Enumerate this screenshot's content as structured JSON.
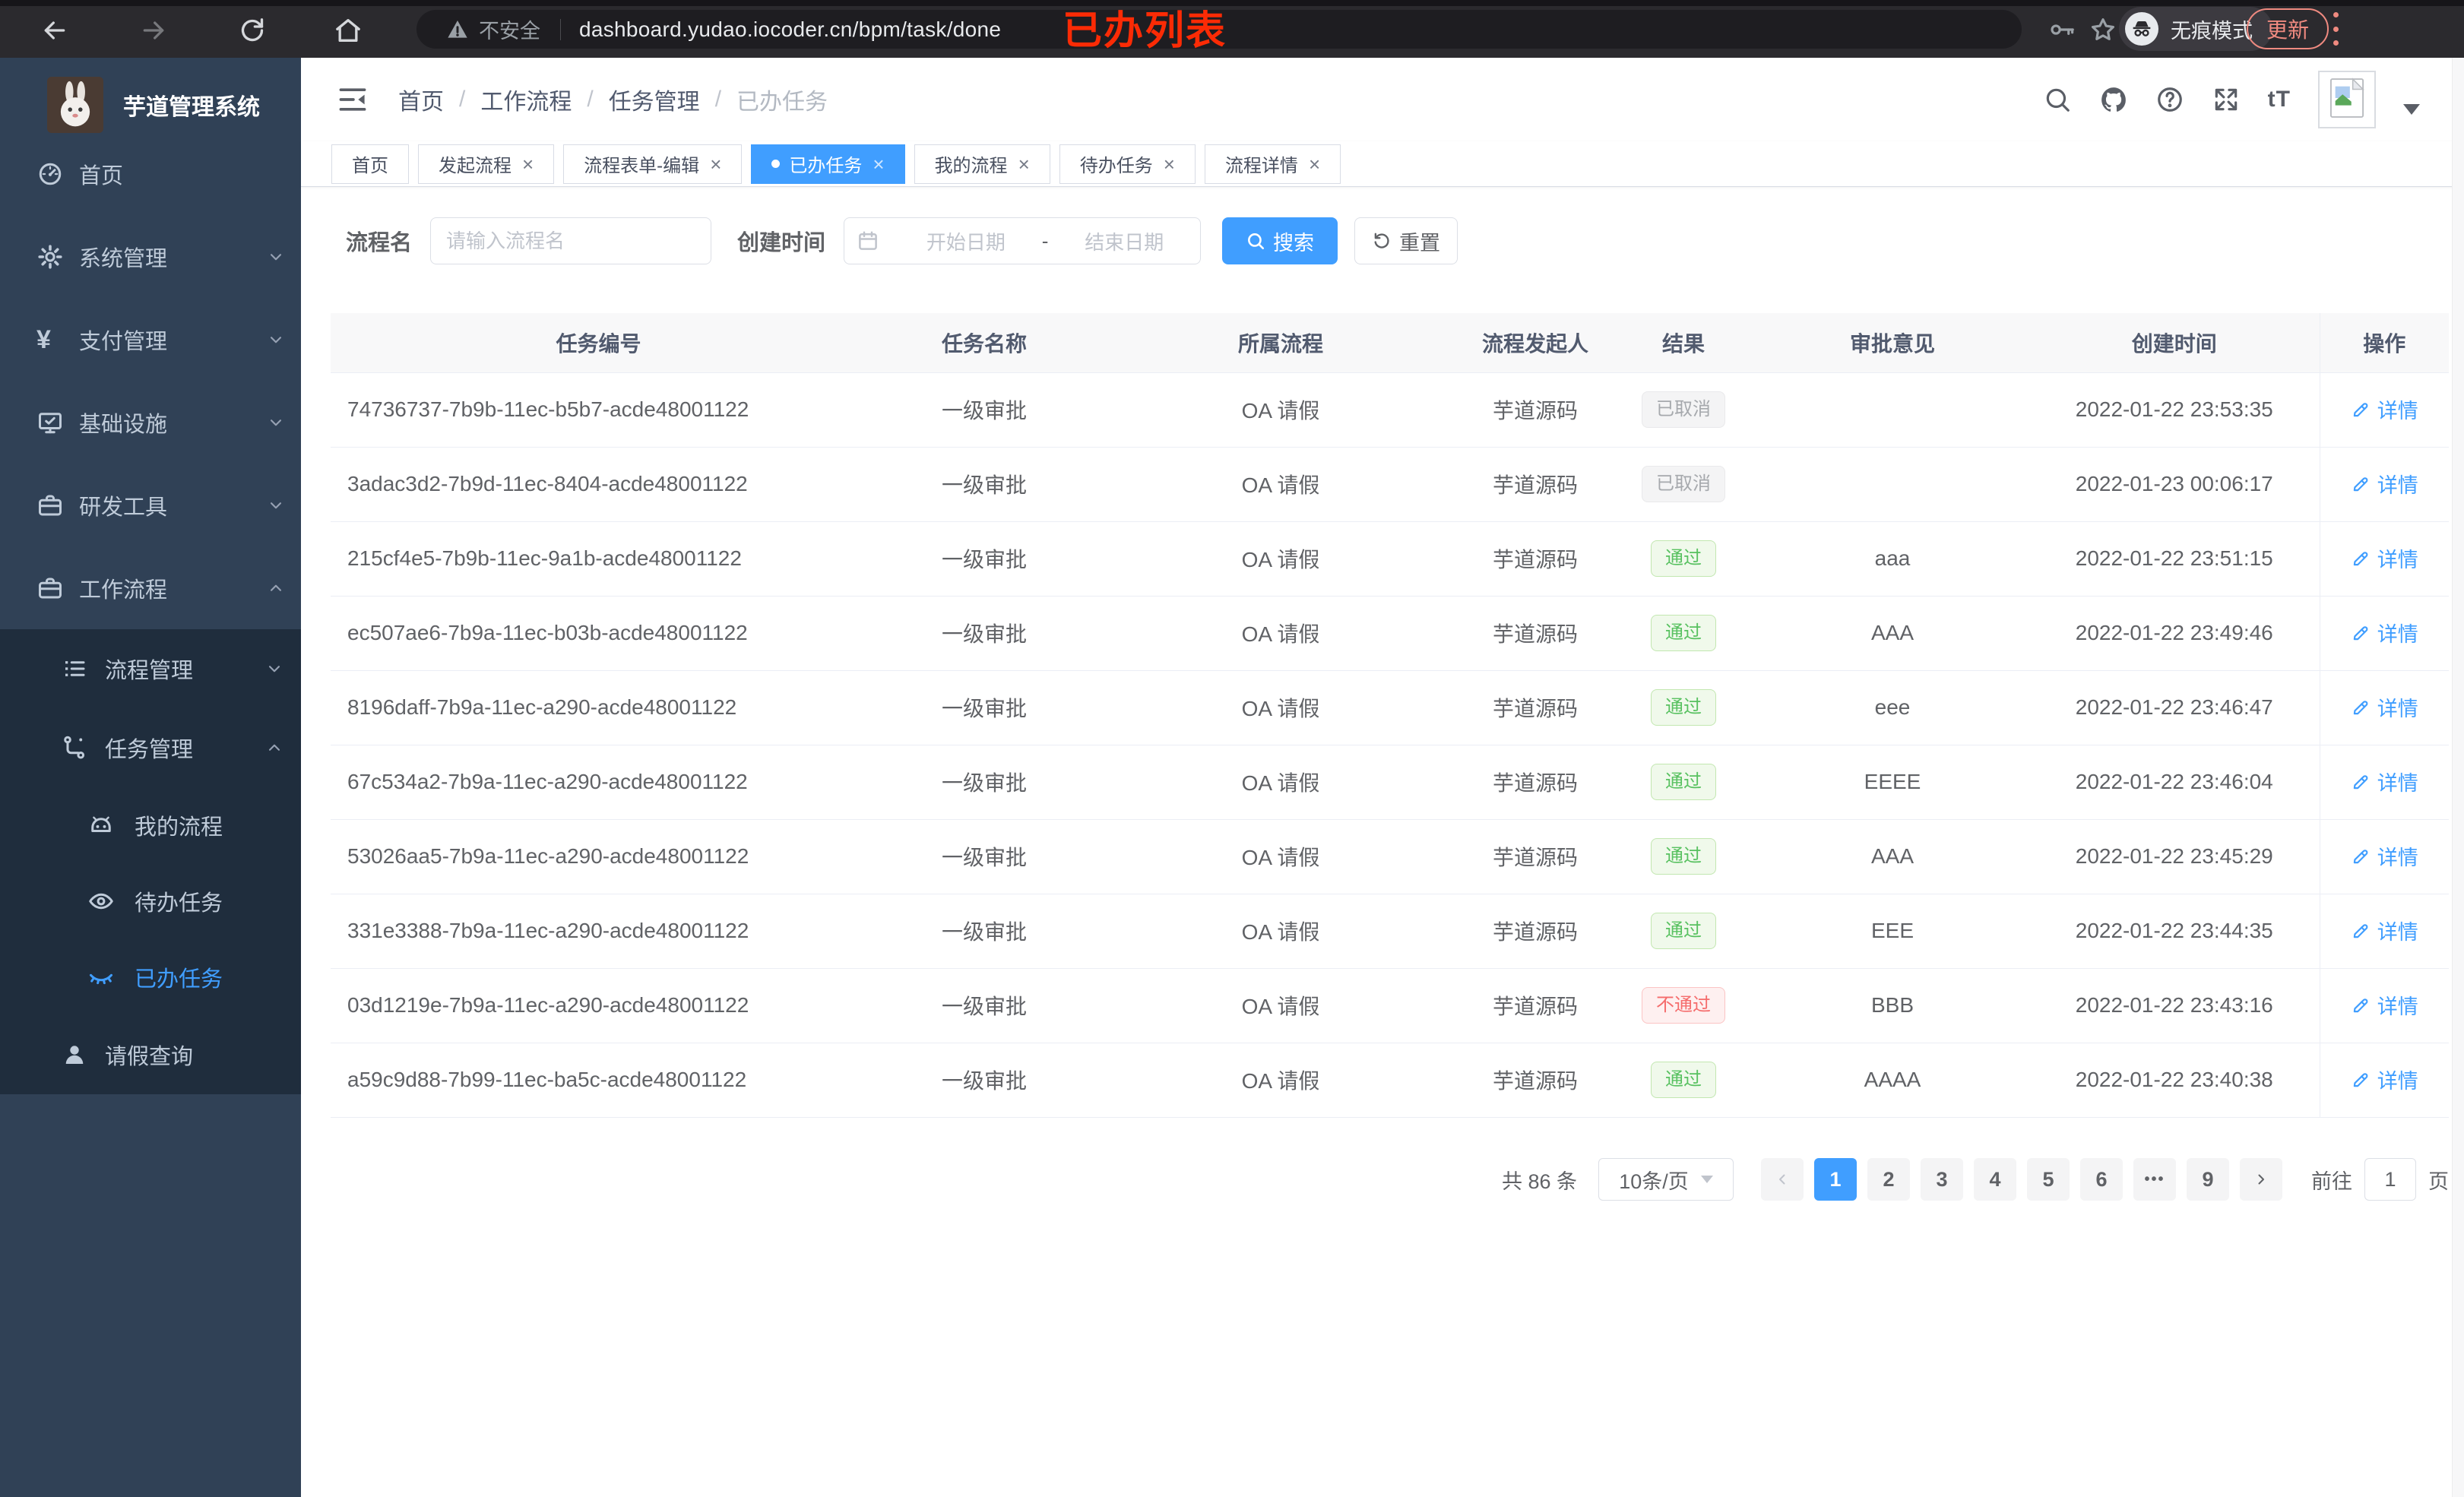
{
  "browser": {
    "security_label": "不安全",
    "url": "dashboard.yudao.iocoder.cn/bpm/task/done",
    "incognito_label": "无痕模式",
    "update_label": "更新",
    "annotation": "已办列表"
  },
  "app": {
    "title": "芋道管理系统"
  },
  "sidebar": {
    "items": [
      {
        "label": "首页",
        "icon": "dashboard-icon",
        "level": 1
      },
      {
        "label": "系统管理",
        "icon": "gear-icon",
        "level": 1,
        "chevron": "down"
      },
      {
        "label": "支付管理",
        "icon": "yen-icon",
        "level": 1,
        "chevron": "down"
      },
      {
        "label": "基础设施",
        "icon": "monitor-icon",
        "level": 1,
        "chevron": "down"
      },
      {
        "label": "研发工具",
        "icon": "toolbox-icon",
        "level": 1,
        "chevron": "down"
      },
      {
        "label": "工作流程",
        "icon": "toolbox-icon",
        "level": 1,
        "chevron": "up"
      },
      {
        "label": "流程管理",
        "icon": "list-icon",
        "level": 2,
        "chevron": "down"
      },
      {
        "label": "任务管理",
        "icon": "flow-icon",
        "level": 2,
        "chevron": "up"
      },
      {
        "label": "我的流程",
        "icon": "robot-icon",
        "level": 3
      },
      {
        "label": "待办任务",
        "icon": "eye-icon",
        "level": 3
      },
      {
        "label": "已办任务",
        "icon": "eye-closed-icon",
        "level": 3,
        "active": true
      },
      {
        "label": "请假查询",
        "icon": "user-icon",
        "level": 2
      }
    ]
  },
  "breadcrumb": [
    "首页",
    "工作流程",
    "任务管理",
    "已办任务"
  ],
  "tabs": [
    {
      "label": "首页",
      "closable": false
    },
    {
      "label": "发起流程",
      "closable": true
    },
    {
      "label": "流程表单-编辑",
      "closable": true
    },
    {
      "label": "已办任务",
      "closable": true,
      "active": true
    },
    {
      "label": "我的流程",
      "closable": true
    },
    {
      "label": "待办任务",
      "closable": true
    },
    {
      "label": "流程详情",
      "closable": true
    }
  ],
  "filters": {
    "name_label": "流程名",
    "name_placeholder": "请输入流程名",
    "time_label": "创建时间",
    "start_placeholder": "开始日期",
    "range_separator": "-",
    "end_placeholder": "结束日期",
    "search_label": "搜索",
    "reset_label": "重置"
  },
  "table": {
    "columns": [
      "任务编号",
      "任务名称",
      "所属流程",
      "流程发起人",
      "结果",
      "审批意见",
      "创建时间",
      "操作"
    ],
    "detail_label": "详情",
    "rows": [
      {
        "id": "74736737-7b9b-11ec-b5b7-acde48001122",
        "name": "一级审批",
        "process": "OA 请假",
        "starter": "芋道源码",
        "result": "已取消",
        "result_type": "info",
        "comment": "",
        "time": "2022-01-22 23:53:35"
      },
      {
        "id": "3adac3d2-7b9d-11ec-8404-acde48001122",
        "name": "一级审批",
        "process": "OA 请假",
        "starter": "芋道源码",
        "result": "已取消",
        "result_type": "info",
        "comment": "",
        "time": "2022-01-23 00:06:17"
      },
      {
        "id": "215cf4e5-7b9b-11ec-9a1b-acde48001122",
        "name": "一级审批",
        "process": "OA 请假",
        "starter": "芋道源码",
        "result": "通过",
        "result_type": "success",
        "comment": "aaa",
        "time": "2022-01-22 23:51:15"
      },
      {
        "id": "ec507ae6-7b9a-11ec-b03b-acde48001122",
        "name": "一级审批",
        "process": "OA 请假",
        "starter": "芋道源码",
        "result": "通过",
        "result_type": "success",
        "comment": "AAA",
        "time": "2022-01-22 23:49:46"
      },
      {
        "id": "8196daff-7b9a-11ec-a290-acde48001122",
        "name": "一级审批",
        "process": "OA 请假",
        "starter": "芋道源码",
        "result": "通过",
        "result_type": "success",
        "comment": "eee",
        "time": "2022-01-22 23:46:47"
      },
      {
        "id": "67c534a2-7b9a-11ec-a290-acde48001122",
        "name": "一级审批",
        "process": "OA 请假",
        "starter": "芋道源码",
        "result": "通过",
        "result_type": "success",
        "comment": "EEEE",
        "time": "2022-01-22 23:46:04"
      },
      {
        "id": "53026aa5-7b9a-11ec-a290-acde48001122",
        "name": "一级审批",
        "process": "OA 请假",
        "starter": "芋道源码",
        "result": "通过",
        "result_type": "success",
        "comment": "AAA",
        "time": "2022-01-22 23:45:29"
      },
      {
        "id": "331e3388-7b9a-11ec-a290-acde48001122",
        "name": "一级审批",
        "process": "OA 请假",
        "starter": "芋道源码",
        "result": "通过",
        "result_type": "success",
        "comment": "EEE",
        "time": "2022-01-22 23:44:35"
      },
      {
        "id": "03d1219e-7b9a-11ec-a290-acde48001122",
        "name": "一级审批",
        "process": "OA 请假",
        "starter": "芋道源码",
        "result": "不通过",
        "result_type": "danger",
        "comment": "BBB",
        "time": "2022-01-22 23:43:16"
      },
      {
        "id": "a59c9d88-7b99-11ec-ba5c-acde48001122",
        "name": "一级审批",
        "process": "OA 请假",
        "starter": "芋道源码",
        "result": "通过",
        "result_type": "success",
        "comment": "AAAA",
        "time": "2022-01-22 23:40:38"
      }
    ]
  },
  "pagination": {
    "total_label": "共 86 条",
    "page_size": "10条/页",
    "pages": [
      "1",
      "2",
      "3",
      "4",
      "5",
      "6",
      "•••",
      "9"
    ],
    "active_page": "1",
    "goto_label": "前往",
    "goto_value": "1",
    "page_label": "页"
  },
  "colors": {
    "accent": "#409eff",
    "success": "#58c160",
    "danger": "#f56c6c",
    "info": "#a6a9ad",
    "sidebar_bg": "#304156",
    "submenu_bg": "#1f2d3d"
  }
}
